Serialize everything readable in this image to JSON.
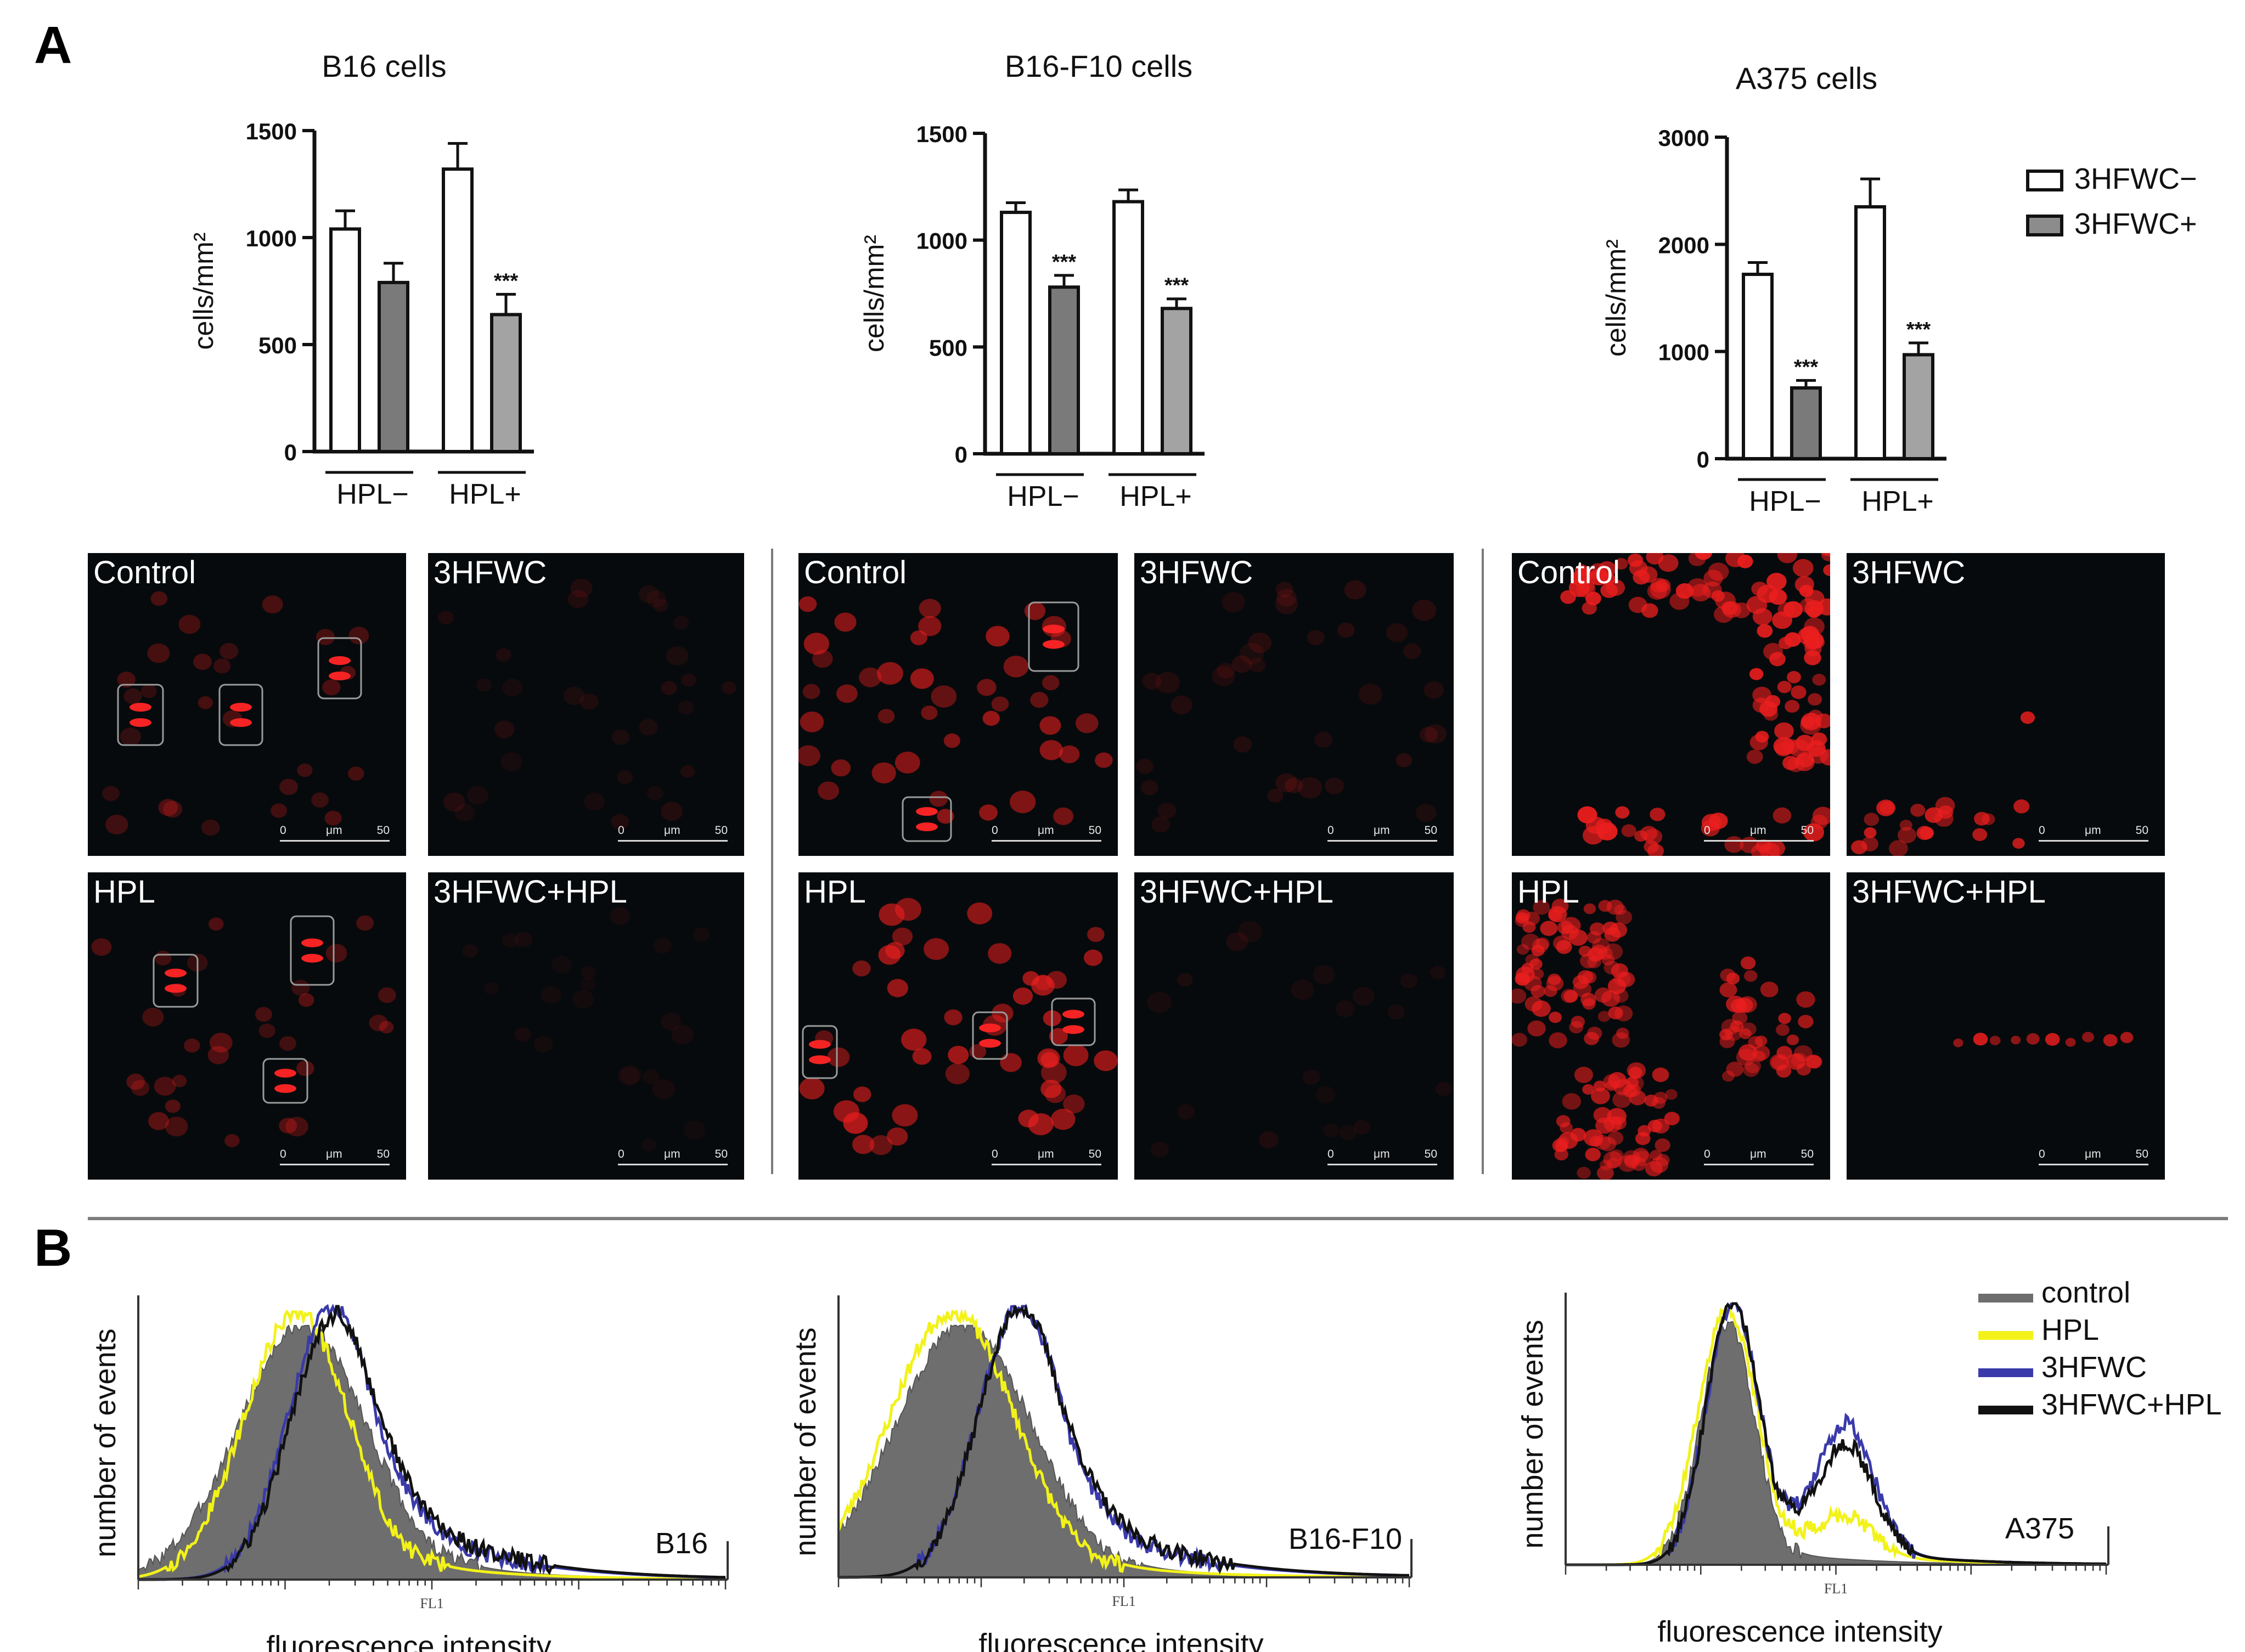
{
  "panel_labels": {
    "a": "A",
    "b": "B"
  },
  "bar_legend": {
    "items": [
      "3HFWC−",
      "3HFWC+"
    ],
    "colors": [
      "#ffffff",
      "#8c8c8c"
    ]
  },
  "hist_legend": {
    "items": [
      "control",
      "HPL",
      "3HFWC",
      "3HFWC+HPL"
    ],
    "colors": [
      "#6e6e6e",
      "#f2f21a",
      "#3a3aaa",
      "#111111"
    ]
  },
  "micrographs": {
    "labels": {
      "control": "Control",
      "hfwc": "3HFWC",
      "hpl": "HPL",
      "combo": "3HFWC+HPL"
    },
    "scale": {
      "zero": "0",
      "unit": "μm",
      "fifty": "50"
    }
  },
  "chart_data": [
    {
      "type": "bar",
      "title": "B16 cells",
      "ylabel": "cells/mm²",
      "ylim": [
        0,
        1500
      ],
      "yticks": [
        "0",
        "500",
        "1000",
        "1500"
      ],
      "groups": [
        "HPL−",
        "HPL+"
      ],
      "series": [
        {
          "name": "3HFWC−",
          "values": [
            1040,
            1320
          ],
          "errors": [
            85,
            120
          ]
        },
        {
          "name": "3HFWC+",
          "values": [
            790,
            640
          ],
          "errors": [
            90,
            95
          ]
        }
      ],
      "annotations": [
        {
          "group": 1,
          "series": 1,
          "text": "***"
        }
      ]
    },
    {
      "type": "bar",
      "title": "B16-F10 cells",
      "ylabel": "cells/mm²",
      "ylim": [
        0,
        1500
      ],
      "yticks": [
        "0",
        "500",
        "1000",
        "1500"
      ],
      "groups": [
        "HPL−",
        "HPL+"
      ],
      "series": [
        {
          "name": "3HFWC−",
          "values": [
            1130,
            1180
          ],
          "errors": [
            45,
            55
          ]
        },
        {
          "name": "3HFWC+",
          "values": [
            780,
            680
          ],
          "errors": [
            55,
            45
          ]
        }
      ],
      "annotations": [
        {
          "group": 0,
          "series": 1,
          "text": "***"
        },
        {
          "group": 1,
          "series": 1,
          "text": "***"
        }
      ]
    },
    {
      "type": "bar",
      "title": "A375 cells",
      "ylabel": "cells/mm²",
      "ylim": [
        0,
        3000
      ],
      "yticks": [
        "0",
        "1000",
        "2000",
        "3000"
      ],
      "groups": [
        "HPL−",
        "HPL+"
      ],
      "series": [
        {
          "name": "3HFWC−",
          "values": [
            1720,
            2350
          ],
          "errors": [
            110,
            260
          ]
        },
        {
          "name": "3HFWC+",
          "values": [
            660,
            970
          ],
          "errors": [
            70,
            110
          ]
        }
      ],
      "annotations": [
        {
          "group": 0,
          "series": 1,
          "text": "***"
        },
        {
          "group": 1,
          "series": 1,
          "text": "***"
        }
      ]
    },
    {
      "type": "area",
      "label": "B16",
      "xlabel": "fluorescence intensity",
      "ylabel": "number of events",
      "axis_tag": "FL1",
      "x_scale": "log",
      "series": [
        {
          "name": "control",
          "peak": 0.28,
          "width": 0.11,
          "tail": 0.45
        },
        {
          "name": "HPL",
          "peak": 0.27,
          "width": 0.09,
          "tail": 0.35
        },
        {
          "name": "3HFWC",
          "peak": 0.33,
          "width": 0.075,
          "tail": 0.8
        },
        {
          "name": "3HFWC+HPL",
          "peak": 0.335,
          "width": 0.075,
          "tail": 0.9
        }
      ]
    },
    {
      "type": "area",
      "label": "B16-F10",
      "xlabel": "fluorescence intensity",
      "ylabel": "number of events",
      "axis_tag": "FL1",
      "x_scale": "log",
      "series": [
        {
          "name": "control",
          "peak": 0.22,
          "width": 0.12,
          "tail": 0.4
        },
        {
          "name": "HPL",
          "peak": 0.2,
          "width": 0.11,
          "tail": 0.4
        },
        {
          "name": "3HFWC",
          "peak": 0.32,
          "width": 0.075,
          "tail": 0.75
        },
        {
          "name": "3HFWC+HPL",
          "peak": 0.32,
          "width": 0.075,
          "tail": 0.85
        }
      ]
    },
    {
      "type": "area",
      "label": "A375",
      "xlabel": "fluorescence intensity",
      "ylabel": "number of events",
      "axis_tag": "FL1",
      "x_scale": "log",
      "series": [
        {
          "name": "control",
          "peak": 0.3,
          "width": 0.05,
          "tail": 0.15,
          "second_peak": 0
        },
        {
          "name": "HPL",
          "peak": 0.3,
          "width": 0.055,
          "tail": 0.3,
          "second_peak": 0.15
        },
        {
          "name": "3HFWC",
          "peak": 0.31,
          "width": 0.05,
          "tail": 0.4,
          "second_peak": 0.48
        },
        {
          "name": "3HFWC+HPL",
          "peak": 0.31,
          "width": 0.05,
          "tail": 0.4,
          "second_peak": 0.4
        }
      ]
    }
  ]
}
